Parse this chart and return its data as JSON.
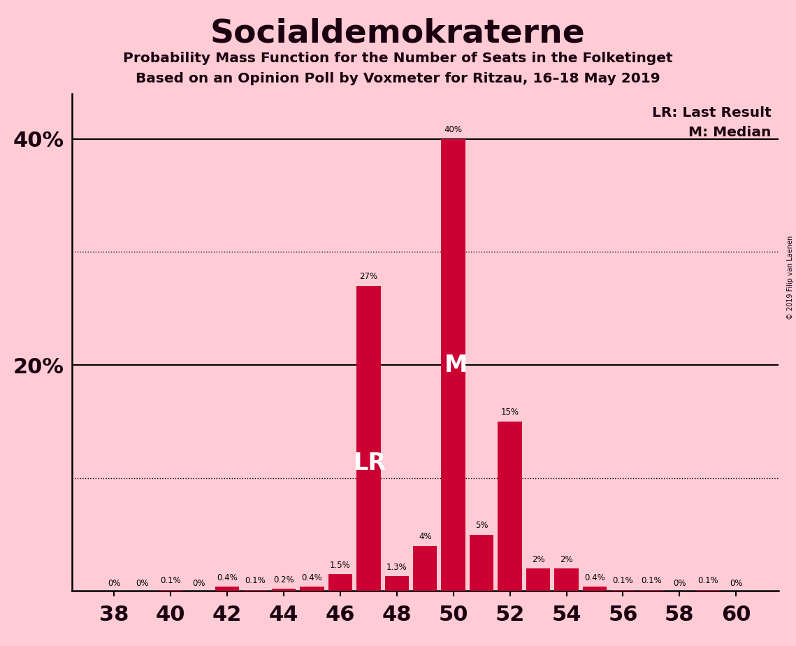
{
  "title": "Socialdemokraterne",
  "subtitle1": "Probability Mass Function for the Number of Seats in the Folketinget",
  "subtitle2": "Based on an Opinion Poll by Voxmeter for Ritzau, 16–18 May 2019",
  "seats": [
    38,
    39,
    40,
    41,
    42,
    43,
    44,
    45,
    46,
    47,
    48,
    49,
    50,
    51,
    52,
    53,
    54,
    55,
    56,
    57,
    58,
    59,
    60
  ],
  "probabilities": [
    0.0,
    0.0,
    0.1,
    0.0,
    0.4,
    0.1,
    0.2,
    0.4,
    1.5,
    27.0,
    1.3,
    4.0,
    40.0,
    5.0,
    15.0,
    2.0,
    2.0,
    0.4,
    0.1,
    0.1,
    0.0,
    0.1,
    0.0
  ],
  "labels": [
    "0%",
    "0%",
    "0.1%",
    "0%",
    "0.4%",
    "0.1%",
    "0.2%",
    "0.4%",
    "1.5%",
    "27%",
    "1.3%",
    "4%",
    "40%",
    "5%",
    "15%",
    "2%",
    "2%",
    "0.4%",
    "0.1%",
    "0.1%",
    "0%",
    "0.1%",
    "0%"
  ],
  "bar_color": "#CC0033",
  "background_color": "#FFCCD5",
  "last_result_seat": 47,
  "median_seat": 50,
  "ylim": [
    0,
    44
  ],
  "copyright": "© 2019 Filip van Laenen"
}
